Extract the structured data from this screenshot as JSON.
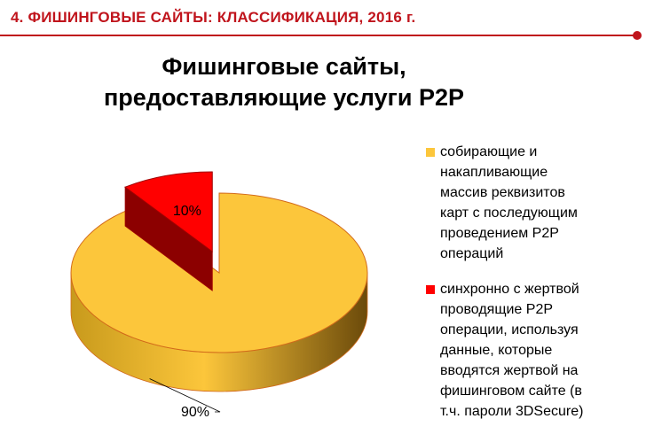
{
  "slide": {
    "header": "4. ФИШИНГОВЫЕ  САЙТЫ: КЛАССИФИКАЦИЯ,  2016 г.",
    "accent_color": "#c0141c"
  },
  "chart_data": {
    "type": "pie",
    "title_lines": [
      "Фишинговые сайты,",
      "предоставляющие услуги P2P"
    ],
    "series": [
      {
        "label": "собирающие и\nнакапливающие\nмассив  реквизитов\nкарт  с последующим\nпроведением P2P\nопераций",
        "value": 90,
        "data_label": "90%",
        "color": "#fcc63b",
        "side_color": "#c89a1c",
        "edge_color": "#d26a1a"
      },
      {
        "label": "синхронно с жертвой\nпроводящие P2P\nоперации,  используя\nданные, которые\nвводятся  жертвой на\nфишинговом сайте (в\nт.ч. пароли 3DSecure)",
        "value": 10,
        "data_label": "10%",
        "color": "#ff0000",
        "side_color": "#8c0000",
        "edge_color": "#a00000"
      }
    ],
    "legend_position": "right",
    "style": "3d-exploded"
  }
}
